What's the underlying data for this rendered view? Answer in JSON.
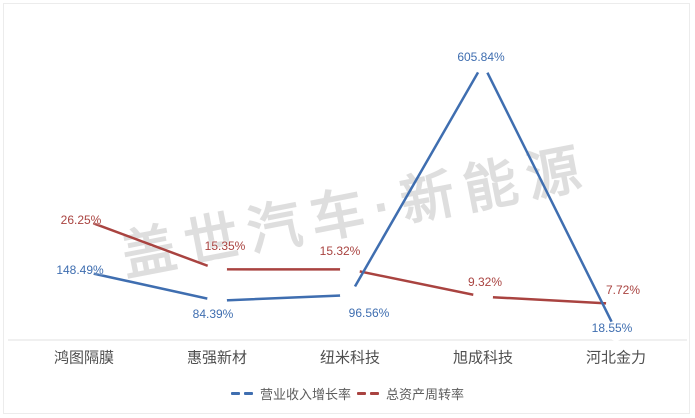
{
  "watermark": "盖世汽车·新能源",
  "colors": {
    "revenue_growth": "#3f6eb0",
    "asset_turnover": "#a94340",
    "axis_line": "#e0e0e0",
    "category_label": "#4f4f4f",
    "legend_text": "#5c5c5c",
    "background": "#ffffff",
    "border": "#ececec"
  },
  "chart_data": {
    "type": "line",
    "title": "",
    "xlabel": "",
    "ylabel": "",
    "grid": false,
    "axes_hidden": true,
    "legend_position": "bottom",
    "categories": [
      "鸿图隔膜",
      "惠强新材",
      "纽米科技",
      "旭成科技",
      "河北金力"
    ],
    "series": [
      {
        "name": "营业收入增长率",
        "color_key": "revenue_growth",
        "values": [
          148.49,
          84.39,
          96.56,
          605.84,
          18.55
        ],
        "labels": [
          "148.49%",
          "84.39%",
          "96.56%",
          "605.84%",
          "18.55%"
        ],
        "ylim": [
          0,
          700
        ]
      },
      {
        "name": "总资产周转率",
        "color_key": "asset_turnover",
        "values": [
          26.25,
          15.35,
          15.32,
          9.32,
          7.72
        ],
        "labels": [
          "26.25%",
          "15.35%",
          "15.32%",
          "9.32%",
          "7.72%"
        ],
        "ylim": [
          0,
          70
        ]
      }
    ]
  }
}
